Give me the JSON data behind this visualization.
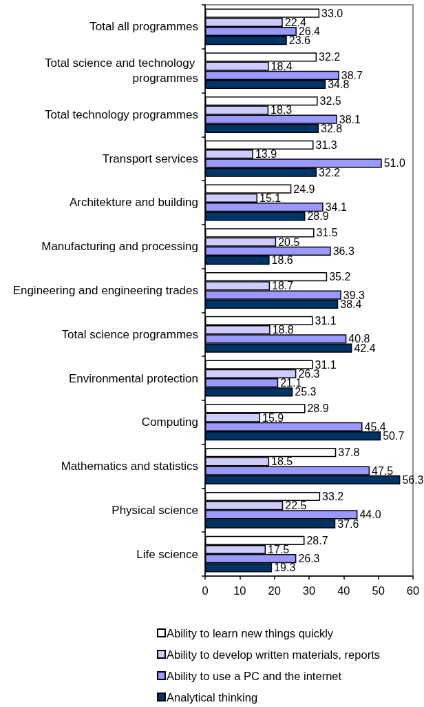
{
  "chart_data": {
    "type": "bar",
    "orientation": "horizontal",
    "categories": [
      "Total all programmes",
      "Total science and technology programmes",
      "Total technology programmes",
      "Transport services",
      "Architekture and building",
      "Manufacturing and processing",
      "Engineering and engineering trades",
      "Total science programmes",
      "Environmental protection",
      "Computing",
      "Mathematics and statistics",
      "Physical science",
      "Life science"
    ],
    "series": [
      {
        "name": "Ability to learn new things quickly",
        "color": "#ffffff",
        "values": [
          33.0,
          32.2,
          32.5,
          31.3,
          24.9,
          31.5,
          35.2,
          31.1,
          31.1,
          28.9,
          37.8,
          33.2,
          28.7
        ],
        "value_labels": [
          "33.0",
          "32.2",
          "32.5",
          "31.3",
          "24.9",
          "31.5",
          "35.2",
          "31.1",
          "31.1",
          "28.9",
          "37.8",
          "33.2",
          "28.7"
        ]
      },
      {
        "name": "Ability to develop written materials, reports",
        "color": "#ccccff",
        "values": [
          22.4,
          18.4,
          18.3,
          13.9,
          15.1,
          20.5,
          18.7,
          18.8,
          26.3,
          15.9,
          18.5,
          22.5,
          17.5
        ],
        "value_labels": [
          "22.4",
          "18.4",
          "18.3",
          "13.9",
          "15.1",
          "20.5",
          "18.7",
          "18.8",
          "26.3",
          "15.9",
          "18.5",
          "22.5",
          "17.5"
        ]
      },
      {
        "name": "Ability to use a PC and the internet",
        "color": "#9999ff",
        "values": [
          26.4,
          38.7,
          38.1,
          51.0,
          34.1,
          36.3,
          39.3,
          40.8,
          21.1,
          45.4,
          47.5,
          44.0,
          26.3
        ],
        "value_labels": [
          "26.4",
          "38.7",
          "38.1",
          "51.0",
          "34.1",
          "36.3",
          "39.3",
          "40.8",
          "21.1",
          "45.4",
          "47.5",
          "44.0",
          "26.3"
        ]
      },
      {
        "name": "Analytical thinking",
        "color": "#003366",
        "values": [
          23.6,
          34.8,
          32.8,
          32.2,
          28.9,
          18.6,
          38.4,
          42.4,
          25.3,
          50.7,
          56.3,
          37.6,
          19.3
        ],
        "value_labels": [
          "23.6",
          "34.8",
          "32.8",
          "32.2",
          "28.9",
          "18.6",
          "38.4",
          "42.4",
          "25.3",
          "50.7",
          "56.3",
          "37.6",
          "19.3"
        ]
      }
    ],
    "xlim": [
      0,
      60
    ],
    "xticks": [
      0,
      10,
      20,
      30,
      40,
      50,
      60
    ],
    "grid": false,
    "legend": "bottom"
  }
}
